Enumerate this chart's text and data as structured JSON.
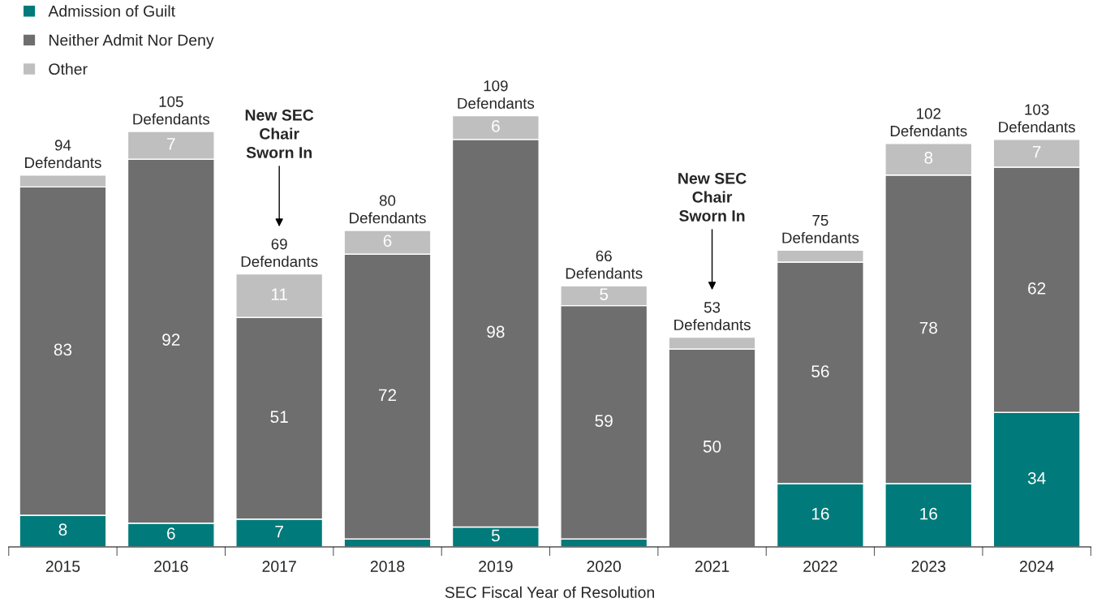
{
  "chart_data": {
    "type": "bar",
    "stacked": true,
    "xlabel": "SEC Fiscal Year of Resolution",
    "categories": [
      "2015",
      "2016",
      "2017",
      "2018",
      "2019",
      "2020",
      "2021",
      "2022",
      "2023",
      "2024"
    ],
    "series": [
      {
        "name": "Admission of Guilt",
        "color": "#007a7a",
        "values": [
          8,
          6,
          7,
          2,
          5,
          2,
          0,
          16,
          16,
          34
        ],
        "value_labels": [
          "8",
          "6",
          "7",
          null,
          "5",
          null,
          null,
          "16",
          "16",
          "34"
        ]
      },
      {
        "name": "Neither Admit Nor Deny",
        "color": "#6e6e6e",
        "values": [
          83,
          92,
          51,
          72,
          98,
          59,
          50,
          56,
          78,
          62
        ],
        "value_labels": [
          "83",
          "92",
          "51",
          "72",
          "98",
          "59",
          "50",
          "56",
          "78",
          "62"
        ]
      },
      {
        "name": "Other",
        "color": "#bfbfbf",
        "values": [
          3,
          7,
          11,
          6,
          6,
          5,
          3,
          3,
          8,
          7
        ],
        "value_labels": [
          null,
          "7",
          "11",
          "6",
          "6",
          "5",
          null,
          null,
          "8",
          "7"
        ]
      }
    ],
    "totals": [
      "94\nDefendants",
      "105\nDefendants",
      "69\nDefendants",
      "80\nDefendants",
      "109\nDefendants",
      "66\nDefendants",
      "53\nDefendants",
      "75\nDefendants",
      "102\nDefendants",
      "103\nDefendants"
    ],
    "annotations": [
      "New SEC\nChair\nSworn In",
      "New SEC\nChair\nSworn In"
    ],
    "legend": "top left",
    "grid": false
  }
}
